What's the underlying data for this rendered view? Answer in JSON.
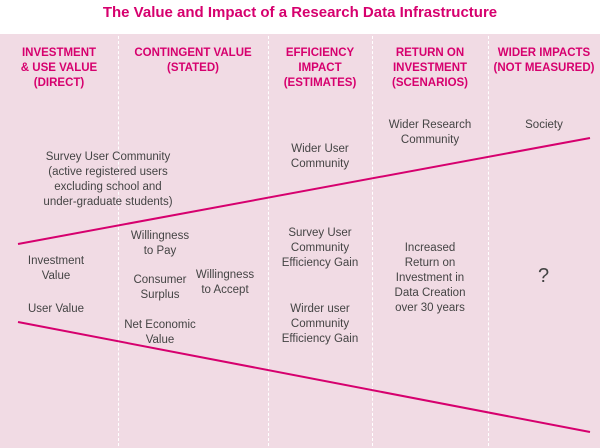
{
  "title": "The Value and Impact of a Research Data Infrastructure",
  "columns": [
    {
      "heading": "INVESTMENT\n& USE VALUE\n(DIRECT)"
    },
    {
      "heading": "CONTINGENT VALUE\n(STATED)"
    },
    {
      "heading": "EFFICIENCY\nIMPACT\n(ESTIMATES)"
    },
    {
      "heading": "RETURN ON\nINVESTMENT\n(SCENARIOS)"
    },
    {
      "heading": "WIDER IMPACTS\n(NOT MEASURED)"
    }
  ],
  "communities": {
    "survey": "Survey User Community\n(active registered users\nexcluding school and\nunder-graduate students)",
    "wider_user": "Wider User\nCommunity",
    "wider_research": "Wider Research\nCommunity",
    "society": "Society"
  },
  "measures": {
    "investment_value": "Investment\nValue",
    "user_value": "User Value",
    "willingness_to_pay": "Willingness\nto Pay",
    "consumer_surplus": "Consumer\nSurplus",
    "net_economic_value": "Net Economic\nValue",
    "willingness_to_accept": "Willingness\nto Accept",
    "survey_efficiency": "Survey User\nCommunity\nEfficiency Gain",
    "wider_efficiency": "Wirder user\nCommunity\nEfficiency Gain",
    "roi": "Increased\nReturn on\nInvestment in\nData Creation\nover 30 years",
    "unknown": "?"
  },
  "colors": {
    "accent": "#d6006e",
    "background": "#f1dbe4",
    "text": "#444444"
  }
}
